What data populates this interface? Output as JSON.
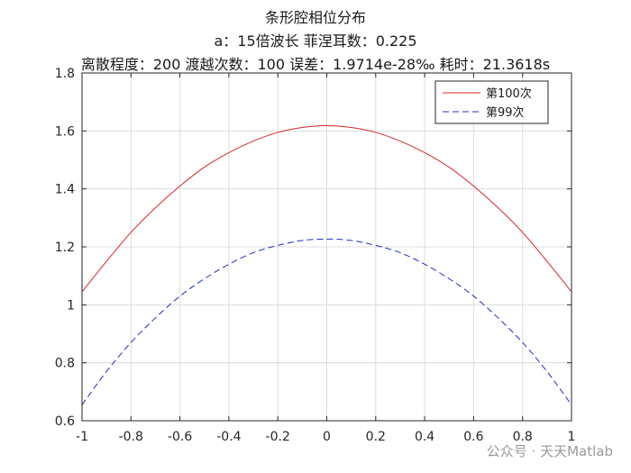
{
  "chart_data": {
    "type": "line",
    "title_lines": [
      "条形腔相位分布",
      "a：15倍波长  菲涅耳数：0.225",
      "离散程度：200  渡越次数：100  误差：1.9714e-28‰  耗时：21.3618s"
    ],
    "xlabel": "",
    "ylabel": "",
    "xlim": [
      -1,
      1
    ],
    "ylim": [
      0.6,
      1.8
    ],
    "xticks": [
      "-1",
      "-0.8",
      "-0.6",
      "-0.4",
      "-0.2",
      "0",
      "0.2",
      "0.4",
      "0.6",
      "0.8",
      "1"
    ],
    "yticks": [
      "0.6",
      "0.8",
      "1",
      "1.2",
      "1.4",
      "1.6",
      "1.8"
    ],
    "grid": true,
    "legend_position": "top-right",
    "x": [
      -1,
      -0.9,
      -0.8,
      -0.7,
      -0.6,
      -0.5,
      -0.4,
      -0.3,
      -0.2,
      -0.1,
      0,
      0.1,
      0.2,
      0.3,
      0.4,
      0.5,
      0.6,
      0.7,
      0.8,
      0.9,
      1
    ],
    "series": [
      {
        "name": "第100次",
        "color": "#d62728",
        "style": "solid",
        "values": [
          1.045,
          1.15,
          1.25,
          1.335,
          1.41,
          1.475,
          1.525,
          1.565,
          1.595,
          1.612,
          1.618,
          1.612,
          1.595,
          1.565,
          1.525,
          1.475,
          1.41,
          1.335,
          1.25,
          1.15,
          1.045
        ]
      },
      {
        "name": "第99次",
        "color": "#1f2fbf",
        "style": "dashed",
        "values": [
          0.655,
          0.77,
          0.87,
          0.955,
          1.03,
          1.09,
          1.14,
          1.18,
          1.205,
          1.222,
          1.227,
          1.222,
          1.205,
          1.18,
          1.14,
          1.09,
          1.03,
          0.955,
          0.87,
          0.77,
          0.655
        ]
      }
    ]
  },
  "watermark": "公众号 · 天天Matlab",
  "colors": {
    "axes": "#262626",
    "grid": "#dcdcdc"
  }
}
